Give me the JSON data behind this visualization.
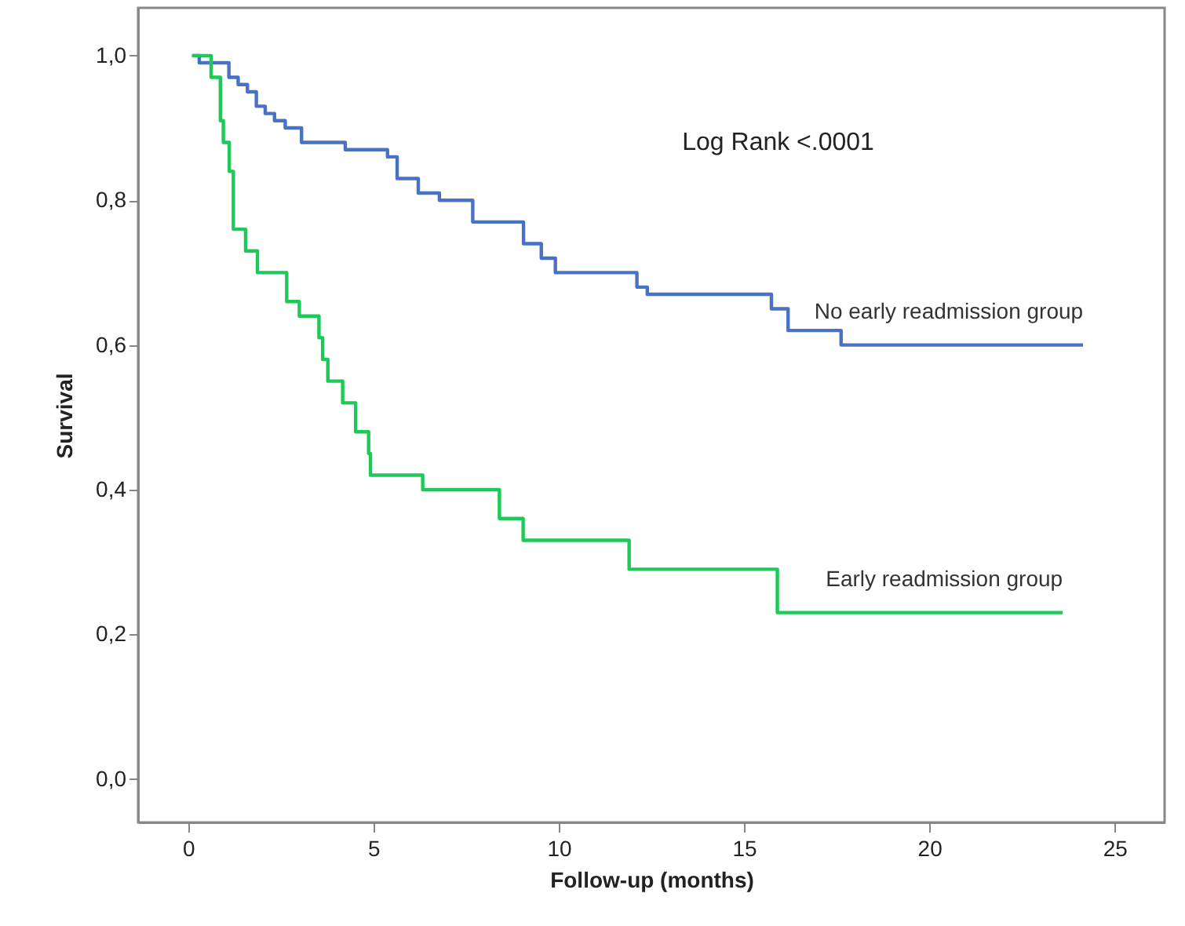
{
  "chart_data": {
    "type": "step",
    "xlabel": "Follow-up (months)",
    "ylabel": "Survival",
    "annotations": [
      "Log Rank <.0001"
    ],
    "xlim": [
      -1.35,
      26.35
    ],
    "xticks": [
      0,
      5,
      10,
      15,
      20,
      25
    ],
    "ylim": [
      -0.06,
      1.066
    ],
    "yticks": [
      {
        "value": 0,
        "label": "0,0"
      },
      {
        "value": 0.2,
        "label": "0,2"
      },
      {
        "value": 0.4,
        "label": "0,4"
      },
      {
        "value": 0.6,
        "label": "0,6"
      },
      {
        "value": 0.8,
        "label": "0,8"
      },
      {
        "value": 1,
        "label": "1,0"
      }
    ],
    "series": [
      {
        "name": "No early readmission group",
        "color": "#4a72c4",
        "x": [
          0.13,
          0.3,
          1.1,
          1.35,
          1.6,
          1.84,
          2.08,
          2.33,
          2.62,
          3.06,
          4.24,
          5.38,
          5.64,
          6.21,
          6.78,
          7.68,
          9.05,
          9.53,
          9.91,
          12.11,
          12.39,
          15.74,
          16.19,
          17.62,
          24.15
        ],
        "values": [
          1.0,
          0.99,
          0.97,
          0.96,
          0.95,
          0.93,
          0.92,
          0.91,
          0.9,
          0.88,
          0.87,
          0.86,
          0.83,
          0.81,
          0.8,
          0.77,
          0.74,
          0.72,
          0.7,
          0.68,
          0.67,
          0.65,
          0.62,
          0.6,
          0.6
        ]
      },
      {
        "name": "Early readmission group",
        "color": "#1ec95a",
        "x": [
          0.1,
          0.62,
          0.87,
          0.95,
          1.11,
          1.22,
          1.55,
          1.87,
          2.66,
          3.0,
          3.53,
          3.63,
          3.77,
          4.17,
          4.52,
          4.87,
          4.92,
          6.33,
          8.4,
          9.04,
          11.9,
          15.9,
          23.6
        ],
        "values": [
          1.0,
          0.97,
          0.91,
          0.88,
          0.84,
          0.76,
          0.73,
          0.7,
          0.66,
          0.64,
          0.61,
          0.58,
          0.55,
          0.52,
          0.48,
          0.45,
          0.42,
          0.4,
          0.36,
          0.33,
          0.29,
          0.23,
          0.23
        ]
      }
    ]
  }
}
